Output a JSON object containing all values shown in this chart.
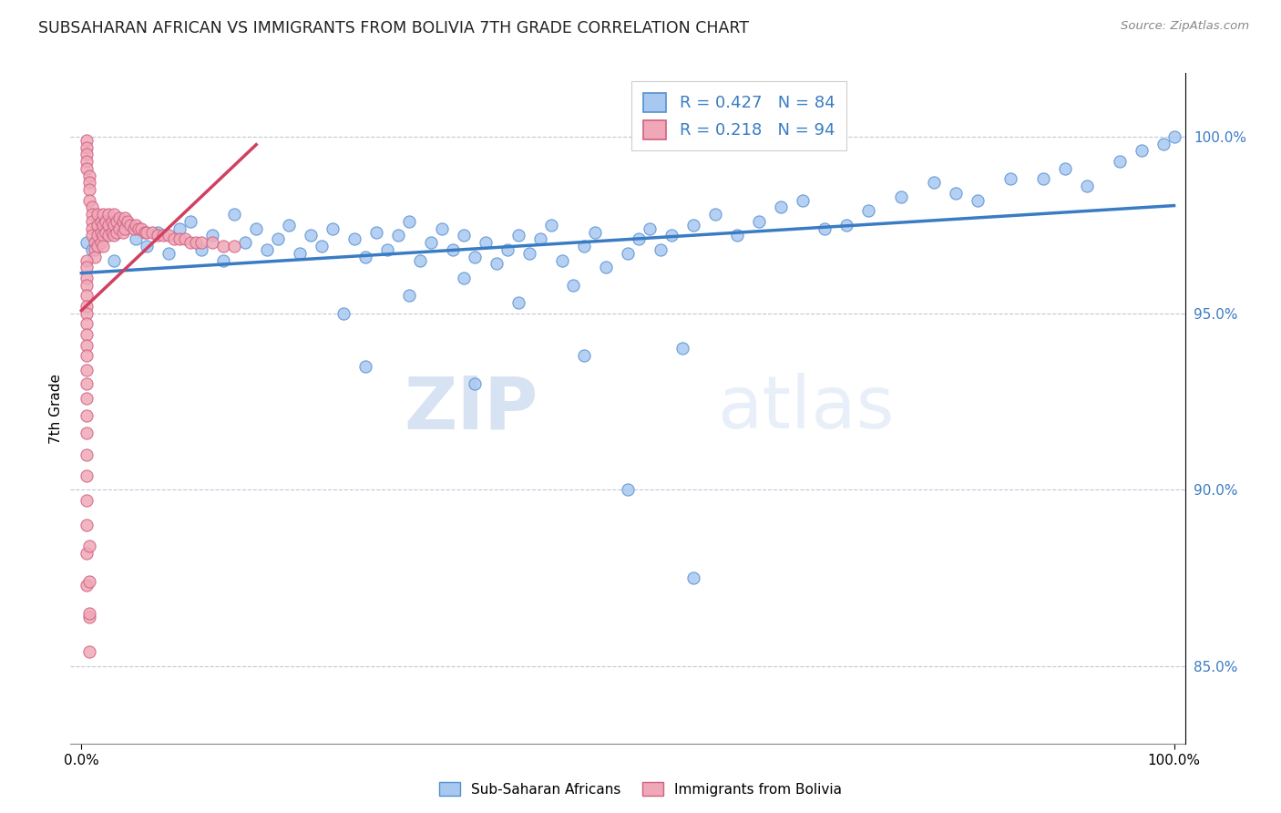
{
  "title": "SUBSAHARAN AFRICAN VS IMMIGRANTS FROM BOLIVIA 7TH GRADE CORRELATION CHART",
  "source": "Source: ZipAtlas.com",
  "ylabel": "7th Grade",
  "legend_entry1": "Sub-Saharan Africans",
  "legend_entry2": "Immigrants from Bolivia",
  "R1": 0.427,
  "N1": 84,
  "R2": 0.218,
  "N2": 94,
  "color_blue_fill": "#a8c8f0",
  "color_blue_edge": "#5590d0",
  "color_pink_fill": "#f0a8b8",
  "color_pink_edge": "#d06080",
  "color_trendline_blue": "#3a7cc4",
  "color_trendline_pink": "#d04060",
  "watermark_zip": "ZIP",
  "watermark_atlas": "atlas",
  "ytick_values": [
    0.85,
    0.9,
    0.95,
    1.0
  ],
  "ytick_labels": [
    "85.0%",
    "90.0%",
    "95.0%",
    "100.0%"
  ],
  "ylim_low": 0.828,
  "ylim_high": 1.018,
  "xlim_low": -0.01,
  "xlim_high": 1.01,
  "blue_x": [
    0.005,
    0.01,
    0.02,
    0.03,
    0.04,
    0.05,
    0.06,
    0.07,
    0.08,
    0.09,
    0.1,
    0.11,
    0.12,
    0.13,
    0.14,
    0.15,
    0.16,
    0.17,
    0.18,
    0.19,
    0.2,
    0.21,
    0.22,
    0.23,
    0.25,
    0.26,
    0.27,
    0.28,
    0.29,
    0.3,
    0.31,
    0.32,
    0.33,
    0.34,
    0.35,
    0.36,
    0.37,
    0.38,
    0.39,
    0.4,
    0.41,
    0.42,
    0.43,
    0.44,
    0.46,
    0.47,
    0.48,
    0.5,
    0.51,
    0.52,
    0.53,
    0.54,
    0.55,
    0.56,
    0.58,
    0.6,
    0.62,
    0.64,
    0.66,
    0.68,
    0.7,
    0.72,
    0.75,
    0.78,
    0.8,
    0.82,
    0.85,
    0.88,
    0.9,
    0.92,
    0.95,
    0.97,
    0.99,
    1.0,
    0.24,
    0.3,
    0.35,
    0.4,
    0.45,
    0.5,
    0.26,
    0.36,
    0.46,
    0.56
  ],
  "blue_y": [
    0.97,
    0.968,
    0.972,
    0.965,
    0.975,
    0.971,
    0.969,
    0.973,
    0.967,
    0.974,
    0.976,
    0.968,
    0.972,
    0.965,
    0.978,
    0.97,
    0.974,
    0.968,
    0.971,
    0.975,
    0.967,
    0.972,
    0.969,
    0.974,
    0.971,
    0.966,
    0.973,
    0.968,
    0.972,
    0.976,
    0.965,
    0.97,
    0.974,
    0.968,
    0.972,
    0.966,
    0.97,
    0.964,
    0.968,
    0.972,
    0.967,
    0.971,
    0.975,
    0.965,
    0.969,
    0.973,
    0.963,
    0.967,
    0.971,
    0.974,
    0.968,
    0.972,
    0.94,
    0.975,
    0.978,
    0.972,
    0.976,
    0.98,
    0.982,
    0.974,
    0.975,
    0.979,
    0.983,
    0.987,
    0.984,
    0.982,
    0.988,
    0.988,
    0.991,
    0.986,
    0.993,
    0.996,
    0.998,
    1.0,
    0.95,
    0.955,
    0.96,
    0.953,
    0.958,
    0.9,
    0.935,
    0.93,
    0.938,
    0.875
  ],
  "pink_x": [
    0.005,
    0.005,
    0.005,
    0.005,
    0.005,
    0.007,
    0.007,
    0.007,
    0.007,
    0.01,
    0.01,
    0.01,
    0.01,
    0.01,
    0.012,
    0.012,
    0.012,
    0.015,
    0.015,
    0.015,
    0.015,
    0.018,
    0.018,
    0.018,
    0.02,
    0.02,
    0.02,
    0.02,
    0.022,
    0.022,
    0.025,
    0.025,
    0.025,
    0.028,
    0.028,
    0.03,
    0.03,
    0.03,
    0.032,
    0.032,
    0.035,
    0.035,
    0.038,
    0.038,
    0.04,
    0.04,
    0.042,
    0.045,
    0.048,
    0.05,
    0.052,
    0.055,
    0.058,
    0.06,
    0.065,
    0.07,
    0.075,
    0.08,
    0.085,
    0.09,
    0.095,
    0.1,
    0.105,
    0.11,
    0.12,
    0.13,
    0.14,
    0.005,
    0.005,
    0.005,
    0.005,
    0.005,
    0.005,
    0.005,
    0.005,
    0.005,
    0.005,
    0.005,
    0.005,
    0.005,
    0.005,
    0.005,
    0.005,
    0.005,
    0.005,
    0.005,
    0.005,
    0.005,
    0.005,
    0.007,
    0.007,
    0.007,
    0.007,
    0.007
  ],
  "pink_y": [
    0.999,
    0.997,
    0.995,
    0.993,
    0.991,
    0.989,
    0.987,
    0.985,
    0.982,
    0.98,
    0.978,
    0.976,
    0.974,
    0.972,
    0.97,
    0.968,
    0.966,
    0.978,
    0.975,
    0.972,
    0.969,
    0.976,
    0.973,
    0.97,
    0.978,
    0.975,
    0.972,
    0.969,
    0.976,
    0.973,
    0.978,
    0.975,
    0.972,
    0.976,
    0.973,
    0.978,
    0.975,
    0.972,
    0.976,
    0.973,
    0.977,
    0.974,
    0.976,
    0.973,
    0.977,
    0.974,
    0.976,
    0.975,
    0.974,
    0.975,
    0.974,
    0.974,
    0.973,
    0.973,
    0.973,
    0.972,
    0.972,
    0.972,
    0.971,
    0.971,
    0.971,
    0.97,
    0.97,
    0.97,
    0.97,
    0.969,
    0.969,
    0.965,
    0.963,
    0.96,
    0.958,
    0.955,
    0.952,
    0.95,
    0.947,
    0.944,
    0.941,
    0.938,
    0.934,
    0.93,
    0.926,
    0.921,
    0.916,
    0.91,
    0.904,
    0.897,
    0.89,
    0.882,
    0.873,
    0.864,
    0.854,
    0.865,
    0.874,
    0.884
  ]
}
